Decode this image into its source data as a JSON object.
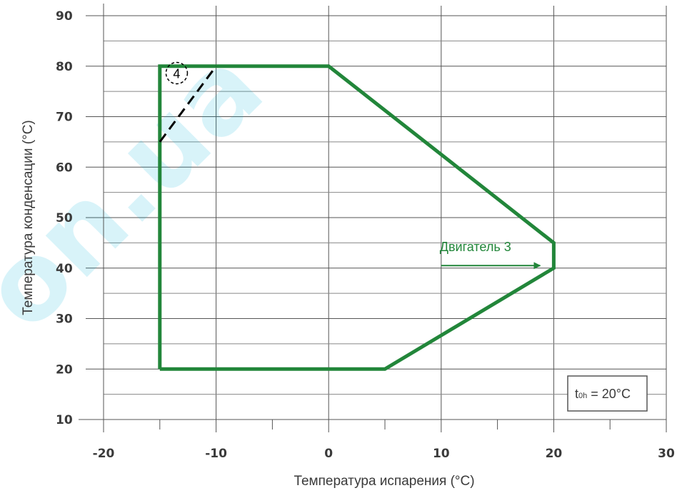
{
  "chart_data": {
    "type": "line",
    "xlabel": "Температура испарения (°C)",
    "ylabel": "Температура конденсации (°C)",
    "xlim": [
      -20,
      30
    ],
    "ylim": [
      10,
      90
    ],
    "x_ticks": [
      -20,
      -10,
      0,
      10,
      20,
      30
    ],
    "y_ticks": [
      10,
      20,
      30,
      40,
      50,
      60,
      70,
      80,
      90
    ],
    "x_tick_labels": [
      "-20",
      "-10",
      "0",
      "10",
      "20",
      "30"
    ],
    "y_tick_labels": [
      "10",
      "20",
      "30",
      "40",
      "50",
      "60",
      "70",
      "80",
      "90"
    ],
    "grid": true,
    "series": [
      {
        "color": "#22863a",
        "closed": true,
        "points": [
          [
            -15,
            20
          ],
          [
            5,
            20
          ],
          [
            20,
            40
          ],
          [
            20,
            45
          ],
          [
            0,
            80
          ],
          [
            -15,
            80
          ],
          [
            -15,
            20
          ]
        ]
      },
      {
        "color": "#000000",
        "style": "dashed",
        "points": [
          [
            -15,
            65
          ],
          [
            -10,
            80
          ]
        ]
      }
    ],
    "annotations": [
      {
        "text": "Двигатель 3",
        "x": 10,
        "y": 42.5,
        "color": "#22863a",
        "arrow_to": [
          19.3,
          41.2
        ]
      },
      {
        "text": "4",
        "x": -13.5,
        "y": 77.5,
        "circled": true,
        "color": "#000000"
      }
    ],
    "note": {
      "main": "t",
      "sub": "0h",
      "rest": " = 20°C",
      "position": "bottom-right"
    }
  },
  "watermark": "on.ua"
}
